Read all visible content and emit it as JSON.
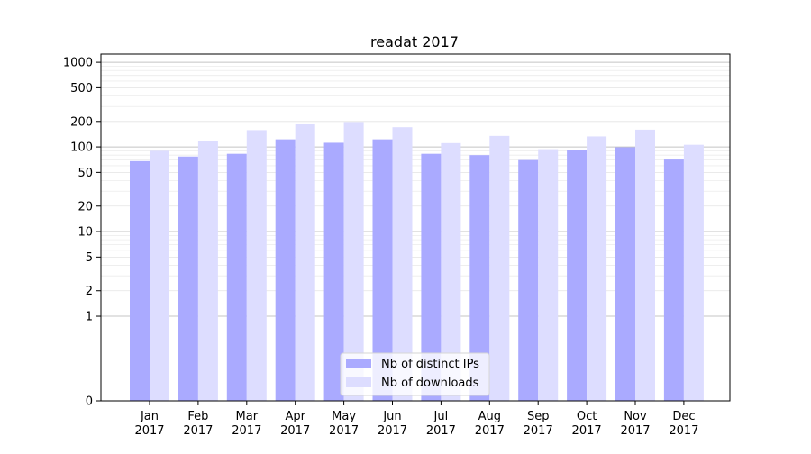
{
  "chart_data": {
    "type": "bar",
    "title": "readat 2017",
    "xlabel": "",
    "ylabel": "",
    "y_scale": "symlog",
    "ylim": [
      0,
      1250
    ],
    "yticks": [
      0,
      1,
      2,
      5,
      10,
      20,
      50,
      100,
      200,
      500,
      1000
    ],
    "categories": [
      "Jan\n2017",
      "Feb\n2017",
      "Mar\n2017",
      "Apr\n2017",
      "May\n2017",
      "Jun\n2017",
      "Jul\n2017",
      "Aug\n2017",
      "Sep\n2017",
      "Oct\n2017",
      "Nov\n2017",
      "Dec\n2017"
    ],
    "series": [
      {
        "name": "Nb of distinct IPs",
        "color": "#aaaaff",
        "values": [
          68,
          77,
          83,
          123,
          112,
          123,
          83,
          80,
          70,
          92,
          99,
          71
        ]
      },
      {
        "name": "Nb of downloads",
        "color": "#ddddff",
        "values": [
          90,
          118,
          158,
          185,
          197,
          171,
          111,
          135,
          94,
          133,
          160,
          106
        ]
      }
    ],
    "grid": true,
    "legend_position": "lower center"
  }
}
